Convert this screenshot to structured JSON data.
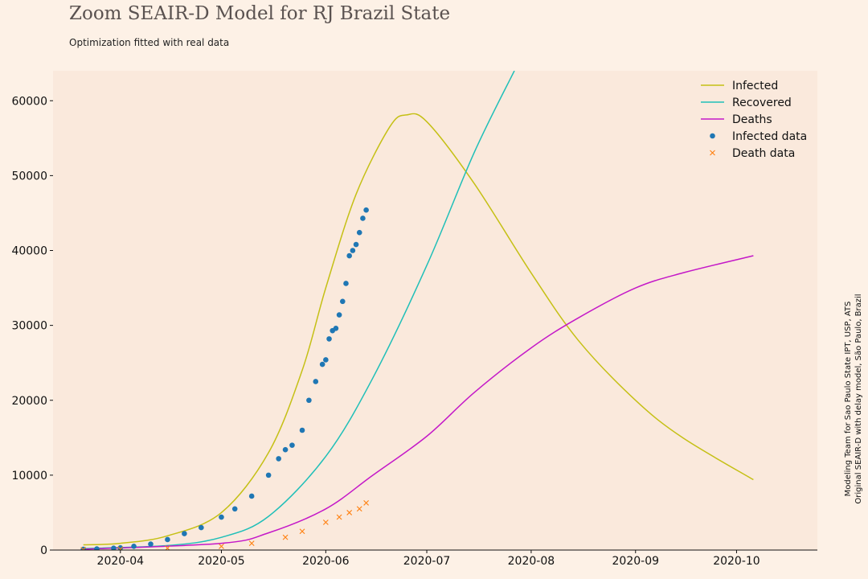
{
  "chart_data": {
    "type": "line",
    "title": "Zoom SEAIR-D Model for RJ Brazil State",
    "subtitle": "Optimization fitted with real data",
    "side_note": [
      "Modeling Team for Sao Paulo State IPT, USP, ATS",
      "Original SEAIR-D with delay model, São Paulo, Brazil"
    ],
    "xlabel": "",
    "ylabel": "",
    "xlim": [
      "2020-03-12",
      "2020-10-25"
    ],
    "ylim": [
      0,
      64000
    ],
    "x_ticks": [
      "2020-04",
      "2020-05",
      "2020-06",
      "2020-07",
      "2020-08",
      "2020-09",
      "2020-10"
    ],
    "y_ticks": [
      0,
      10000,
      20000,
      30000,
      40000,
      50000,
      60000
    ],
    "grid": false,
    "legend_position": "top-right",
    "colors": {
      "background": "#fdf1e6",
      "plot_area": "#fae9dc",
      "infected": "#c5c015",
      "recovered": "#1fbfb8",
      "deaths": "#c418c8",
      "infected_data": "#1f77b4",
      "death_data": "#ff7f0e"
    },
    "series": [
      {
        "name": "Infected",
        "kind": "line",
        "color": "#c5c015",
        "points": [
          [
            "2020-03-21",
            700
          ],
          [
            "2020-04-01",
            900
          ],
          [
            "2020-04-15",
            1900
          ],
          [
            "2020-05-01",
            5000
          ],
          [
            "2020-05-15",
            13000
          ],
          [
            "2020-05-25",
            24000
          ],
          [
            "2020-06-01",
            35000
          ],
          [
            "2020-06-10",
            47500
          ],
          [
            "2020-06-20",
            56500
          ],
          [
            "2020-06-25",
            58100
          ],
          [
            "2020-07-01",
            57200
          ],
          [
            "2020-07-15",
            49000
          ],
          [
            "2020-08-01",
            37000
          ],
          [
            "2020-08-15",
            28000
          ],
          [
            "2020-09-01",
            20000
          ],
          [
            "2020-09-15",
            15000
          ],
          [
            "2020-10-06",
            9400
          ]
        ]
      },
      {
        "name": "Recovered",
        "kind": "line",
        "color": "#1fbfb8",
        "points": [
          [
            "2020-03-21",
            200
          ],
          [
            "2020-04-15",
            600
          ],
          [
            "2020-05-01",
            1700
          ],
          [
            "2020-05-15",
            4500
          ],
          [
            "2020-06-01",
            12500
          ],
          [
            "2020-06-15",
            23000
          ],
          [
            "2020-07-01",
            38000
          ],
          [
            "2020-07-15",
            53000
          ],
          [
            "2020-07-27",
            64000
          ]
        ]
      },
      {
        "name": "Deaths",
        "kind": "line",
        "color": "#c418c8",
        "points": [
          [
            "2020-03-21",
            100
          ],
          [
            "2020-05-01",
            900
          ],
          [
            "2020-05-15",
            2300
          ],
          [
            "2020-06-01",
            5500
          ],
          [
            "2020-06-15",
            10000
          ],
          [
            "2020-07-01",
            15200
          ],
          [
            "2020-07-15",
            21000
          ],
          [
            "2020-08-01",
            27000
          ],
          [
            "2020-08-15",
            31000
          ],
          [
            "2020-09-01",
            35000
          ],
          [
            "2020-09-15",
            37000
          ],
          [
            "2020-10-06",
            39300
          ]
        ]
      },
      {
        "name": "Infected data",
        "kind": "scatter",
        "marker": "circle",
        "color": "#1f77b4",
        "points": [
          [
            "2020-03-21",
            100
          ],
          [
            "2020-03-25",
            150
          ],
          [
            "2020-03-30",
            250
          ],
          [
            "2020-04-01",
            300
          ],
          [
            "2020-04-05",
            500
          ],
          [
            "2020-04-10",
            800
          ],
          [
            "2020-04-15",
            1400
          ],
          [
            "2020-04-20",
            2200
          ],
          [
            "2020-04-25",
            3000
          ],
          [
            "2020-05-01",
            4400
          ],
          [
            "2020-05-05",
            5500
          ],
          [
            "2020-05-10",
            7200
          ],
          [
            "2020-05-15",
            10000
          ],
          [
            "2020-05-18",
            12200
          ],
          [
            "2020-05-20",
            13400
          ],
          [
            "2020-05-22",
            14000
          ],
          [
            "2020-05-25",
            16000
          ],
          [
            "2020-05-27",
            20000
          ],
          [
            "2020-05-29",
            22500
          ],
          [
            "2020-05-31",
            24800
          ],
          [
            "2020-06-01",
            25400
          ],
          [
            "2020-06-02",
            28200
          ],
          [
            "2020-06-03",
            29300
          ],
          [
            "2020-06-04",
            29600
          ],
          [
            "2020-06-05",
            31400
          ],
          [
            "2020-06-06",
            33200
          ],
          [
            "2020-06-07",
            35600
          ],
          [
            "2020-06-08",
            39300
          ],
          [
            "2020-06-09",
            40000
          ],
          [
            "2020-06-10",
            40800
          ],
          [
            "2020-06-11",
            42400
          ],
          [
            "2020-06-12",
            44300
          ],
          [
            "2020-06-13",
            45400
          ]
        ]
      },
      {
        "name": "Death data",
        "kind": "scatter",
        "marker": "x",
        "color": "#ff7f0e",
        "points": [
          [
            "2020-03-21",
            50
          ],
          [
            "2020-04-01",
            100
          ],
          [
            "2020-04-15",
            250
          ],
          [
            "2020-05-01",
            500
          ],
          [
            "2020-05-10",
            900
          ],
          [
            "2020-05-20",
            1700
          ],
          [
            "2020-05-25",
            2500
          ],
          [
            "2020-06-01",
            3700
          ],
          [
            "2020-06-05",
            4400
          ],
          [
            "2020-06-08",
            5000
          ],
          [
            "2020-06-11",
            5500
          ],
          [
            "2020-06-13",
            6300
          ]
        ]
      }
    ]
  }
}
